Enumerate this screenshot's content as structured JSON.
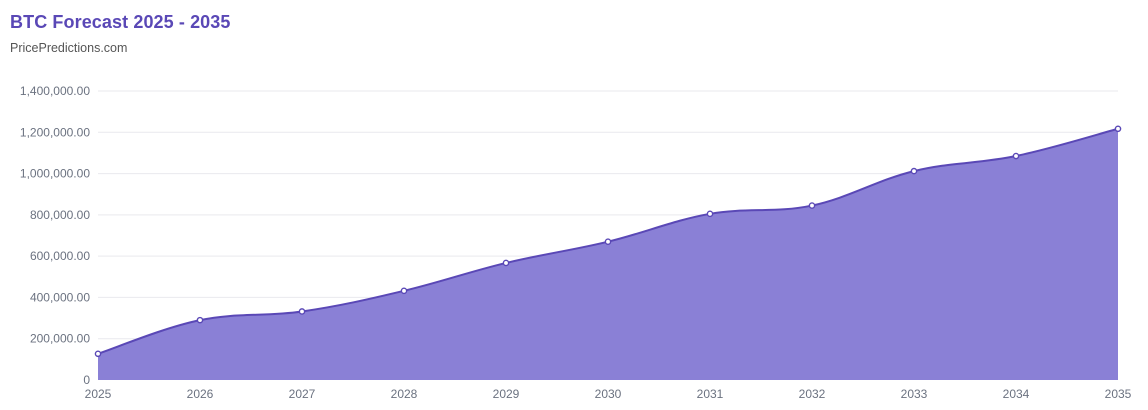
{
  "header": {
    "title": "BTC Forecast 2025 - 2035",
    "subtitle": "PricePredictions.com"
  },
  "chart_data": {
    "type": "area",
    "x": [
      "2025",
      "2026",
      "2027",
      "2028",
      "2029",
      "2030",
      "2031",
      "2032",
      "2033",
      "2034",
      "2035"
    ],
    "series": [
      {
        "values": [
          127000,
          290000,
          332000,
          432000,
          567000,
          670000,
          805000,
          845000,
          1012000,
          1085000,
          1217000
        ],
        "color": "#5a48b6",
        "fill": "#8a80d6"
      }
    ],
    "ylim": [
      0,
      1400000
    ],
    "yticks": [
      0,
      200000,
      400000,
      600000,
      800000,
      1000000,
      1200000,
      1400000
    ],
    "ytick_labels": [
      "0",
      "200,000.00",
      "400,000.00",
      "600,000.00",
      "800,000.00",
      "1,000,000.00",
      "1,200,000.00",
      "1,400,000.00"
    ],
    "grid": true,
    "legend": "none"
  },
  "colors": {
    "title": "#5a48b6",
    "line": "#5a48b6",
    "area": "#8a80d6"
  }
}
